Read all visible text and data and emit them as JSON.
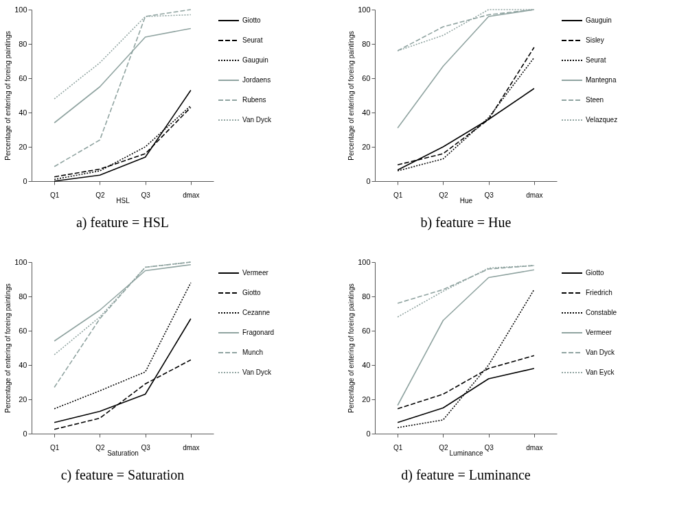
{
  "chart_data": [
    {
      "type": "line",
      "title": "a) feature = HSL",
      "xlabel": "HSL",
      "ylabel": "Percentage of entering of foreing paintings",
      "categories": [
        "Q1",
        "Q2",
        "Q3",
        "dmax"
      ],
      "ylim": [
        0,
        100
      ],
      "yticks": [
        0,
        20,
        40,
        60,
        80,
        100
      ],
      "legend": "right",
      "series": [
        {
          "name": "Giotto",
          "color": "#000000",
          "line_style": "solid",
          "values": [
            0,
            3.5,
            14,
            53
          ]
        },
        {
          "name": "Seurat",
          "color": "#000000",
          "line_style": "dashed",
          "values": [
            2.5,
            7,
            16,
            43
          ]
        },
        {
          "name": "Gauguin",
          "color": "#000000",
          "line_style": "dotted",
          "values": [
            1,
            6,
            20,
            44
          ]
        },
        {
          "name": "Jordaens",
          "color": "#8fa3a0",
          "line_style": "solid",
          "values": [
            34,
            55,
            84,
            89
          ]
        },
        {
          "name": "Rubens",
          "color": "#8fa3a0",
          "line_style": "dashed",
          "values": [
            8.5,
            24,
            96,
            100
          ]
        },
        {
          "name": "Van Dyck",
          "color": "#8fa3a0",
          "line_style": "dotted",
          "values": [
            48,
            69,
            96,
            97
          ]
        }
      ]
    },
    {
      "type": "line",
      "title": "b) feature = Hue",
      "xlabel": "Hue",
      "ylabel": "Percentage of entering of foreing paintings",
      "categories": [
        "Q1",
        "Q2",
        "Q3",
        "dmax"
      ],
      "ylim": [
        0,
        100
      ],
      "yticks": [
        0,
        20,
        40,
        60,
        80,
        100
      ],
      "legend": "right",
      "series": [
        {
          "name": "Gauguin",
          "color": "#000000",
          "line_style": "solid",
          "values": [
            6.5,
            20,
            36,
            54
          ]
        },
        {
          "name": "Sisley",
          "color": "#000000",
          "line_style": "dashed",
          "values": [
            9.5,
            16,
            36,
            78
          ]
        },
        {
          "name": "Seurat",
          "color": "#000000",
          "line_style": "dotted",
          "values": [
            6,
            13,
            37,
            72
          ]
        },
        {
          "name": "Mantegna",
          "color": "#8fa3a0",
          "line_style": "solid",
          "values": [
            31,
            67,
            96,
            100
          ]
        },
        {
          "name": "Steen",
          "color": "#8fa3a0",
          "line_style": "dashed",
          "values": [
            76,
            90,
            97,
            100
          ]
        },
        {
          "name": "Velazquez",
          "color": "#8fa3a0",
          "line_style": "dotted",
          "values": [
            76,
            85,
            100,
            100
          ]
        }
      ]
    },
    {
      "type": "line",
      "title": "c) feature = Saturation",
      "xlabel": "Saturation",
      "ylabel": "Percentage of entering of foreing paintings",
      "categories": [
        "Q1",
        "Q2",
        "Q3",
        "dmax"
      ],
      "ylim": [
        0,
        100
      ],
      "yticks": [
        0,
        20,
        40,
        60,
        80,
        100
      ],
      "legend": "right",
      "series": [
        {
          "name": "Vermeer",
          "color": "#000000",
          "line_style": "solid",
          "values": [
            6.5,
            13,
            23,
            67
          ]
        },
        {
          "name": "Giotto",
          "color": "#000000",
          "line_style": "dashed",
          "values": [
            2.5,
            9,
            29,
            43
          ]
        },
        {
          "name": "Cezanne",
          "color": "#000000",
          "line_style": "dotted",
          "values": [
            14.5,
            25,
            36,
            88
          ]
        },
        {
          "name": "Fragonard",
          "color": "#8fa3a0",
          "line_style": "solid",
          "values": [
            54,
            72,
            95,
            98.5
          ]
        },
        {
          "name": "Munch",
          "color": "#8fa3a0",
          "line_style": "dashed",
          "values": [
            27,
            67,
            97,
            100
          ]
        },
        {
          "name": "Van Dyck",
          "color": "#8fa3a0",
          "line_style": "dotted",
          "values": [
            46,
            68,
            97,
            100
          ]
        }
      ]
    },
    {
      "type": "line",
      "title": "d) feature = Luminance",
      "xlabel": "Luminance",
      "ylabel": "Percentage of entering of foreing paintings",
      "categories": [
        "Q1",
        "Q2",
        "Q3",
        "dmax"
      ],
      "ylim": [
        0,
        100
      ],
      "yticks": [
        0,
        20,
        40,
        60,
        80,
        100
      ],
      "legend": "right",
      "series": [
        {
          "name": "Giotto",
          "color": "#000000",
          "line_style": "solid",
          "values": [
            6.5,
            15,
            32,
            38
          ]
        },
        {
          "name": "Friedrich",
          "color": "#000000",
          "line_style": "dashed",
          "values": [
            14.5,
            23,
            38,
            45.5
          ]
        },
        {
          "name": "Constable",
          "color": "#000000",
          "line_style": "dotted",
          "values": [
            3.5,
            8,
            40,
            84
          ]
        },
        {
          "name": "Vermeer",
          "color": "#8fa3a0",
          "line_style": "solid",
          "values": [
            16.5,
            66,
            91,
            95.5
          ]
        },
        {
          "name": "Van Dyck",
          "color": "#8fa3a0",
          "line_style": "dashed",
          "values": [
            76,
            84,
            96,
            98
          ]
        },
        {
          "name": "Van Eyck",
          "color": "#8fa3a0",
          "line_style": "dotted",
          "values": [
            68,
            83,
            96.5,
            98
          ]
        }
      ]
    }
  ]
}
